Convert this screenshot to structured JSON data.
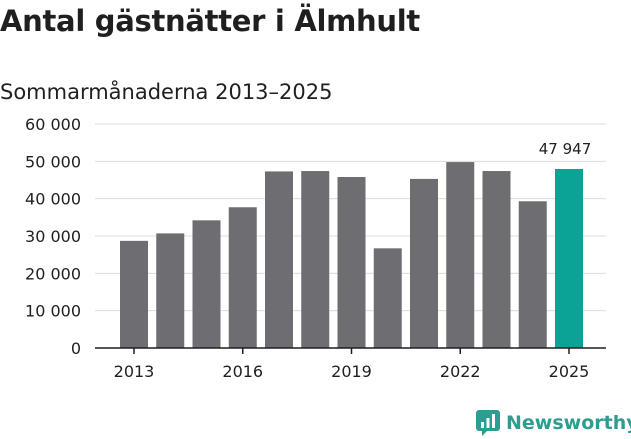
{
  "title": "Antal gästnätter i Älmhult",
  "subtitle": "Sommarmånaderna 2013–2025",
  "brand": {
    "name": "Newsworthy",
    "icon": "newsworthy-logo-icon",
    "color": "#2e9c8f"
  },
  "colors": {
    "bar": "#6e6d72",
    "highlight": "#0aa395",
    "grid": "#dcdcdc",
    "axis": "#1f1f1f"
  },
  "chart_data": {
    "type": "bar",
    "categories": [
      "2013",
      "2014",
      "2015",
      "2016",
      "2017",
      "2018",
      "2019",
      "2020",
      "2021",
      "2022",
      "2023",
      "2024",
      "2025"
    ],
    "values": [
      28700,
      30700,
      34200,
      37700,
      47300,
      47400,
      45800,
      26700,
      45300,
      49800,
      47400,
      39300,
      47947
    ],
    "x_tick_labels": [
      "2013",
      "2016",
      "2019",
      "2022",
      "2025"
    ],
    "y_ticks": [
      0,
      10000,
      20000,
      30000,
      40000,
      50000,
      60000
    ],
    "y_tick_labels": [
      "0",
      "10 000",
      "20 000",
      "30 000",
      "40 000",
      "50 000",
      "60 000"
    ],
    "ylim": [
      0,
      60000
    ],
    "highlight_index": 12,
    "data_labels": [
      {
        "index": 12,
        "text": "47 947"
      }
    ],
    "grid": true,
    "title": "Antal gästnätter i Älmhult",
    "subtitle": "Sommarmånaderna 2013–2025",
    "xlabel": "",
    "ylabel": ""
  }
}
